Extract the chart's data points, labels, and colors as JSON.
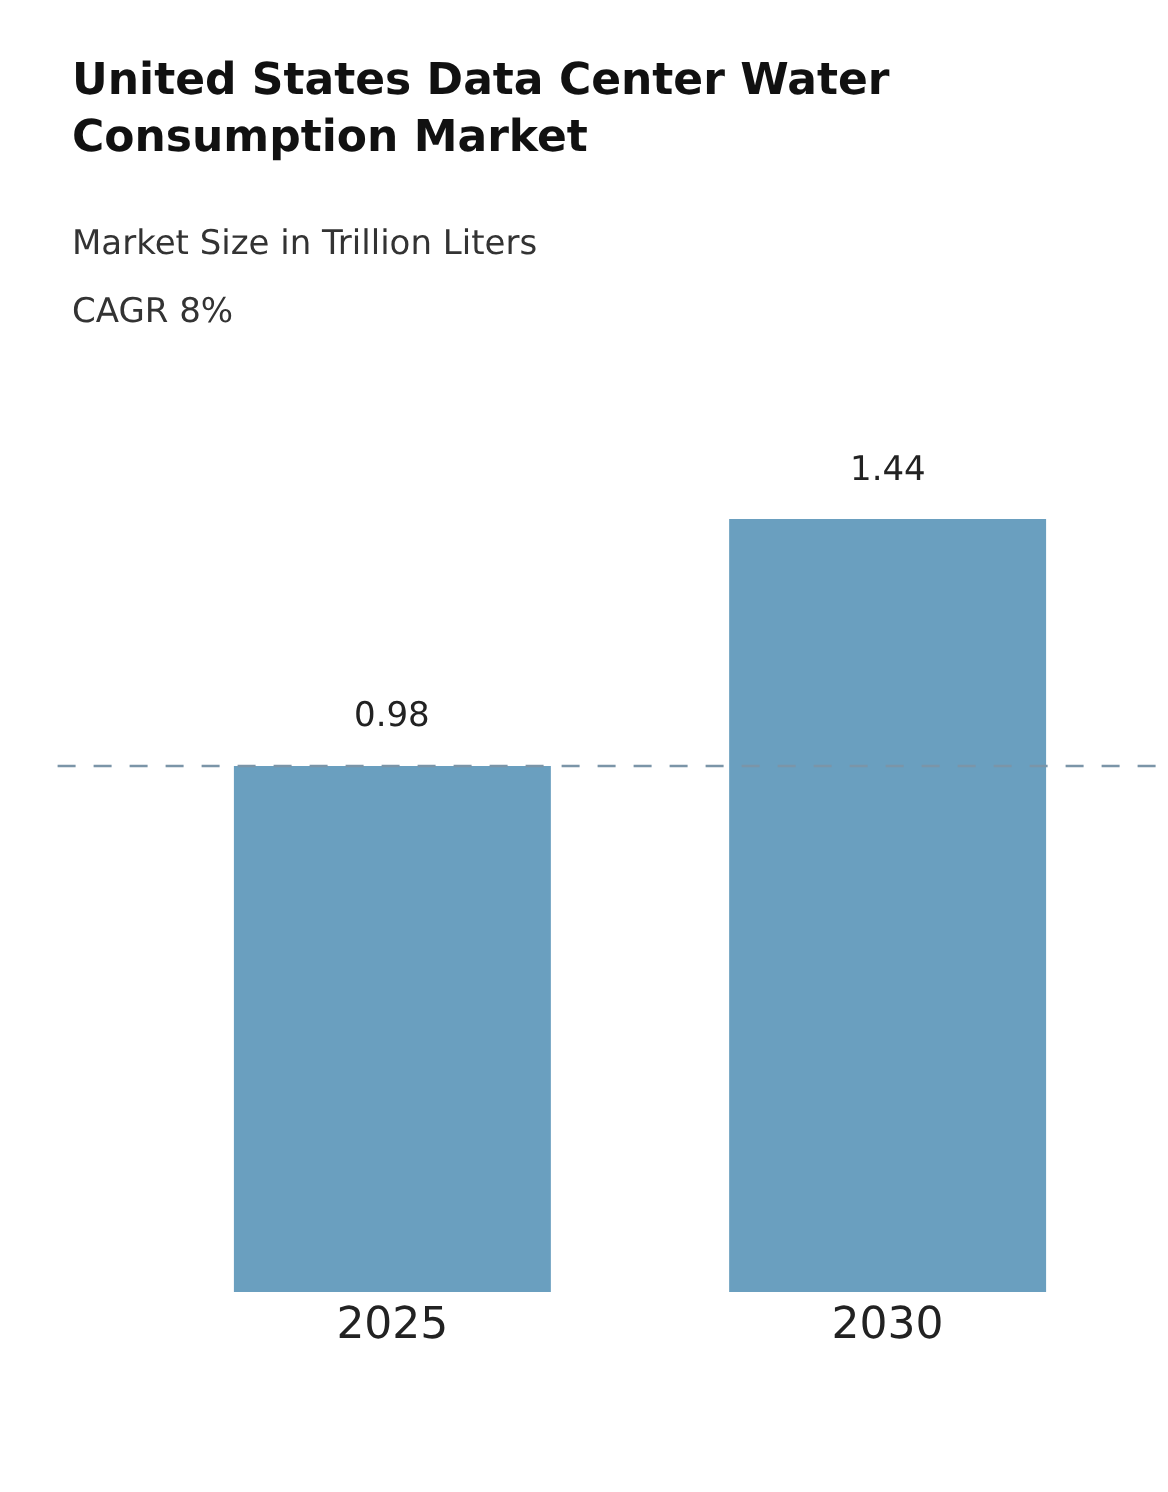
{
  "chart_data": {
    "type": "bar",
    "title": "United States Data Center Water Consumption Market",
    "subtitle": "Market Size in Trillion Liters",
    "annotations": [
      "CAGR 8%"
    ],
    "categories": [
      "2025",
      "2030"
    ],
    "values": [
      0.98,
      1.44
    ],
    "color": "#6a9fbf",
    "data_labels": true,
    "ref_lines": [
      {
        "axis": "y",
        "value": 0.98,
        "color": "#7b95a8",
        "line_style": "dashed"
      }
    ],
    "legend": false
  }
}
